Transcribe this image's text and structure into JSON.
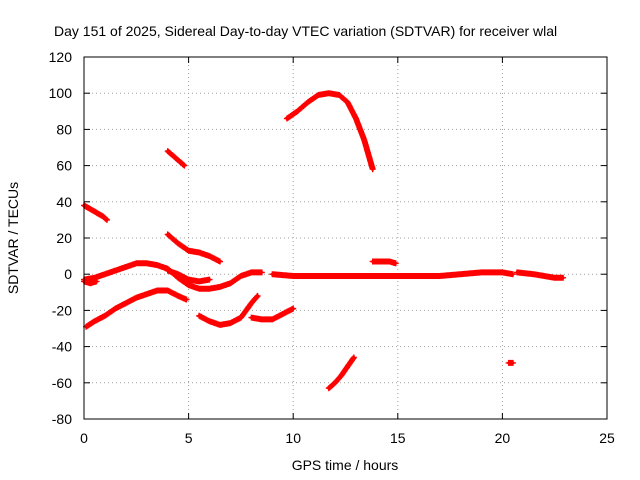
{
  "chart_data": {
    "type": "scatter",
    "title": "Day 151 of 2025, Sidereal Day-to-day VTEC variation (SDTVAR) for receiver wlal",
    "xlabel": "GPS time / hours",
    "ylabel": "SDTVAR / TECUs",
    "xlim": [
      0,
      25
    ],
    "ylim": [
      -80,
      120
    ],
    "xticks": [
      "0",
      "5",
      "10",
      "15",
      "20",
      "25"
    ],
    "yticks": [
      "-80",
      "-60",
      "-40",
      "-20",
      "0",
      "20",
      "40",
      "60",
      "80",
      "100",
      "120"
    ],
    "grid": true,
    "marker_color": "#ff0000",
    "series": [
      {
        "name": "arc-1",
        "points": [
          [
            0.0,
            -3
          ],
          [
            0.5,
            -2
          ],
          [
            1.0,
            0
          ],
          [
            1.5,
            2
          ],
          [
            2.0,
            4
          ],
          [
            2.5,
            6
          ],
          [
            3.0,
            6
          ],
          [
            3.5,
            5
          ],
          [
            4.0,
            3
          ],
          [
            4.5,
            -2
          ],
          [
            5.0,
            -6
          ],
          [
            5.5,
            -8
          ],
          [
            6.0,
            -8
          ],
          [
            6.5,
            -7
          ],
          [
            7.0,
            -5
          ],
          [
            7.5,
            -1
          ],
          [
            8.0,
            1
          ],
          [
            8.5,
            1
          ]
        ]
      },
      {
        "name": "arc-2",
        "points": [
          [
            9.0,
            0
          ],
          [
            10.0,
            -1
          ],
          [
            11.0,
            -1
          ],
          [
            12.0,
            -1
          ],
          [
            13.0,
            -1
          ],
          [
            14.0,
            -1
          ],
          [
            15.0,
            -1
          ],
          [
            16.0,
            -1
          ],
          [
            17.0,
            -1
          ],
          [
            18.0,
            0
          ],
          [
            19.0,
            1
          ],
          [
            19.5,
            1
          ],
          [
            20.0,
            1
          ],
          [
            20.5,
            0
          ]
        ]
      },
      {
        "name": "arc-3",
        "points": [
          [
            20.7,
            1
          ],
          [
            21.5,
            0
          ],
          [
            22.0,
            -1
          ],
          [
            22.5,
            -2
          ],
          [
            22.9,
            -2
          ]
        ]
      },
      {
        "name": "arc-4",
        "points": [
          [
            0.0,
            -4
          ],
          [
            0.3,
            -5
          ],
          [
            0.6,
            -4
          ]
        ]
      },
      {
        "name": "arc-5",
        "points": [
          [
            0.1,
            -29
          ],
          [
            0.5,
            -26
          ],
          [
            1.0,
            -23
          ],
          [
            1.5,
            -19
          ],
          [
            2.0,
            -16
          ],
          [
            2.5,
            -13
          ],
          [
            3.0,
            -11
          ],
          [
            3.5,
            -9
          ],
          [
            4.0,
            -9
          ],
          [
            4.5,
            -12
          ],
          [
            4.9,
            -14
          ]
        ]
      },
      {
        "name": "arc-6",
        "points": [
          [
            0.0,
            38
          ],
          [
            0.3,
            36
          ],
          [
            0.6,
            34
          ],
          [
            0.9,
            32
          ],
          [
            1.1,
            30
          ]
        ]
      },
      {
        "name": "arc-7",
        "points": [
          [
            4.0,
            68
          ],
          [
            4.3,
            65
          ],
          [
            4.6,
            62
          ],
          [
            4.8,
            60
          ]
        ]
      },
      {
        "name": "arc-8",
        "points": [
          [
            4.0,
            22
          ],
          [
            4.5,
            17
          ],
          [
            5.0,
            13
          ],
          [
            5.5,
            12
          ],
          [
            6.0,
            10
          ],
          [
            6.5,
            7
          ]
        ]
      },
      {
        "name": "arc-9",
        "points": [
          [
            4.0,
            2
          ],
          [
            4.5,
            0
          ],
          [
            5.0,
            -3
          ],
          [
            5.5,
            -4
          ],
          [
            6.0,
            -3
          ]
        ]
      },
      {
        "name": "arc-10",
        "points": [
          [
            5.5,
            -23
          ],
          [
            6.0,
            -26
          ],
          [
            6.5,
            -28
          ],
          [
            7.0,
            -27
          ],
          [
            7.5,
            -24
          ],
          [
            8.0,
            -16
          ],
          [
            8.3,
            -12
          ]
        ]
      },
      {
        "name": "arc-11",
        "points": [
          [
            8.0,
            -24
          ],
          [
            8.5,
            -25
          ],
          [
            9.0,
            -25
          ],
          [
            9.5,
            -22
          ],
          [
            10.0,
            -19
          ]
        ]
      },
      {
        "name": "arc-12",
        "points": [
          [
            9.7,
            86
          ],
          [
            10.2,
            90
          ],
          [
            10.7,
            95
          ],
          [
            11.2,
            99
          ],
          [
            11.7,
            100
          ],
          [
            12.2,
            99
          ],
          [
            12.6,
            95
          ],
          [
            13.0,
            86
          ],
          [
            13.4,
            74
          ],
          [
            13.8,
            58
          ]
        ]
      },
      {
        "name": "arc-13",
        "points": [
          [
            11.7,
            -63
          ],
          [
            12.0,
            -60
          ],
          [
            12.3,
            -56
          ],
          [
            12.6,
            -51
          ],
          [
            12.9,
            -46
          ]
        ]
      },
      {
        "name": "arc-14",
        "points": [
          [
            13.8,
            7
          ],
          [
            14.2,
            7
          ],
          [
            14.6,
            7
          ],
          [
            14.9,
            6
          ]
        ]
      },
      {
        "name": "arc-15",
        "points": [
          [
            20.3,
            -49
          ],
          [
            20.5,
            -49
          ]
        ]
      }
    ]
  }
}
